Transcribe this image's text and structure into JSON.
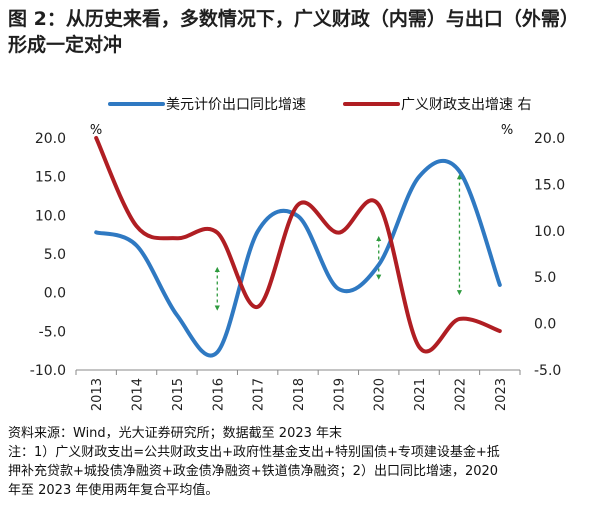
{
  "title": "图 2：从历史来看，多数情况下，广义财政（内需）与出口（外需）形成一定对冲",
  "chart_data": {
    "type": "line",
    "categories": [
      "2013",
      "2014",
      "2015",
      "2016",
      "2017",
      "2018",
      "2019",
      "2020",
      "2021",
      "2022",
      "2023"
    ],
    "series": [
      {
        "name": "美元计价出口同比增速",
        "axis": "left",
        "color": "#2f79c2",
        "values": [
          7.8,
          6.1,
          -2.9,
          -7.7,
          7.9,
          9.9,
          0.5,
          3.6,
          15.0,
          15.7,
          1.0
        ]
      },
      {
        "name": "广义财政支出增速 右",
        "axis": "right",
        "color": "#b01e23",
        "values": [
          20.0,
          10.5,
          9.2,
          9.8,
          1.8,
          12.8,
          9.8,
          12.8,
          -2.5,
          0.5,
          -0.8
        ]
      }
    ],
    "left_axis": {
      "unit": "%",
      "min": -10,
      "max": 20,
      "ticks": [
        20,
        15,
        10,
        5,
        0,
        -5,
        -10
      ],
      "tick_labels": [
        "20.0",
        "15.0",
        "10.0",
        "5.0",
        "0.0",
        "-5.0",
        "-10.0"
      ]
    },
    "right_axis": {
      "unit": "%",
      "min": -5,
      "max": 20,
      "ticks": [
        20,
        15,
        10,
        5,
        0,
        -5
      ],
      "tick_labels": [
        "20.0",
        "15.0",
        "10.0",
        "5.0",
        "0.0",
        "-5.0"
      ]
    },
    "annotations": [
      {
        "type": "double-arrow",
        "category": "2016",
        "from_left": -2.0,
        "to_left": 3.0
      },
      {
        "type": "double-arrow",
        "category": "2020",
        "from_left": 2.0,
        "to_left": 7.0
      },
      {
        "type": "double-arrow",
        "category": "2022",
        "from_left": 0.0,
        "to_left": 15.0
      }
    ],
    "legend_position": "top",
    "grid": false
  },
  "notes": [
    "资料来源：Wind，光大证券研究所；数据截至 2023 年末",
    "注：1）广义财政支出=公共财政支出+政府性基金支出+特别国债+专项建设基金+抵",
    "押补充贷款+城投债净融资+政金债净融资+铁道债净融资；2）出口同比增速，2020",
    "年至 2023 年使用两年复合平均值。"
  ]
}
